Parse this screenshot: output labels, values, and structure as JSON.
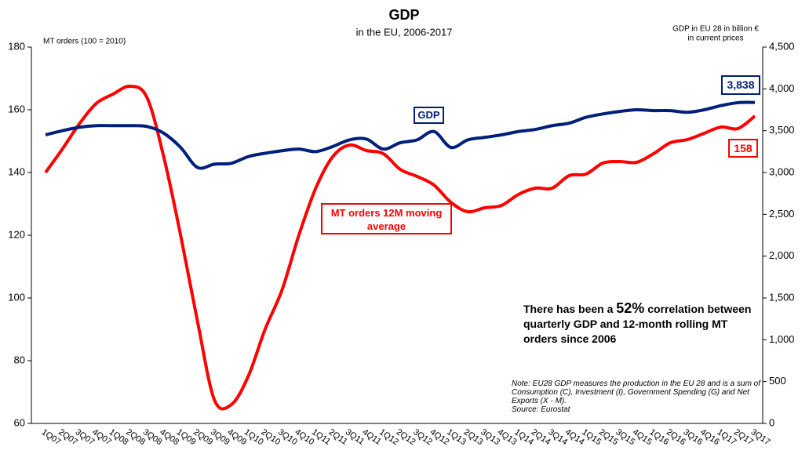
{
  "chart_data": {
    "type": "line",
    "title": "GDP",
    "subtitle": "in the EU, 2006-2017",
    "y_label": "MT orders (100 = 2010)",
    "y2_label": [
      "GDP in EU 28 in billion €",
      "in current prices"
    ],
    "categories": [
      "1Q07",
      "2Q07",
      "3Q07",
      "4Q07",
      "1Q08",
      "2Q08",
      "3Q08",
      "4Q08",
      "1Q09",
      "2Q09",
      "3Q09",
      "4Q09",
      "1Q10",
      "2Q10",
      "3Q10",
      "4Q10",
      "1Q11",
      "2Q11",
      "3Q11",
      "4Q11",
      "1Q12",
      "2Q12",
      "3Q12",
      "4Q12",
      "1Q13",
      "2Q13",
      "3Q13",
      "4Q13",
      "1Q14",
      "2Q14",
      "3Q14",
      "4Q14",
      "1Q15",
      "2Q15",
      "3Q15",
      "4Q15",
      "1Q16",
      "2Q16",
      "3Q16",
      "4Q16",
      "1Q17",
      "2Q17",
      "3Q17"
    ],
    "series": [
      {
        "name": "MT orders 12M moving average",
        "color": "#ff0000",
        "axis": "y",
        "values": [
          140,
          147.5,
          155.5,
          162,
          165,
          167.5,
          164,
          145,
          120,
          92.5,
          67.5,
          66,
          75,
          90,
          102.5,
          120,
          135,
          145,
          148.75,
          147,
          146,
          141,
          138.75,
          136,
          130.5,
          127.5,
          128.75,
          129.5,
          133,
          135,
          135,
          139,
          139.5,
          143,
          143.5,
          143.25,
          146,
          149.5,
          150.5,
          152.5,
          154.5,
          154,
          158
        ]
      },
      {
        "name": "GDP",
        "color": "#001f7a",
        "axis": "y2",
        "values": [
          3450,
          3500,
          3540,
          3560,
          3560,
          3560,
          3550,
          3470,
          3300,
          3060,
          3100,
          3110,
          3190,
          3230,
          3260,
          3280,
          3250,
          3310,
          3390,
          3400,
          3280,
          3356,
          3390,
          3490,
          3300,
          3390,
          3420,
          3450,
          3490,
          3515,
          3560,
          3590,
          3660,
          3700,
          3730,
          3750,
          3740,
          3740,
          3720,
          3750,
          3800,
          3835,
          3838
        ],
        "value_labels": [
          null,
          null,
          null,
          null,
          null,
          null,
          null,
          null,
          null,
          null,
          null,
          null,
          null,
          null,
          null,
          null,
          null,
          null,
          null,
          null,
          null,
          null,
          null,
          null,
          null,
          null,
          null,
          null,
          null,
          null,
          null,
          null,
          null,
          null,
          null,
          null,
          null,
          null,
          null,
          null,
          null,
          null,
          "3,838"
        ]
      }
    ],
    "ylim": [
      60,
      180
    ],
    "yticks": [
      60,
      80,
      100,
      120,
      140,
      160,
      180
    ],
    "y2lim": [
      0,
      4500
    ],
    "y2ticks": [
      0,
      500,
      {
        "value": 1000,
        "label": "1,000"
      },
      {
        "value": 1500,
        "label": "1,500"
      },
      {
        "value": 2000,
        "label": "2,000"
      },
      {
        "value": 2500,
        "label": "2,500"
      },
      {
        "value": 3000,
        "label": "3,000"
      },
      {
        "value": 3500,
        "label": "3,500"
      },
      {
        "value": 4000,
        "label": "4,000"
      },
      {
        "value": 4500,
        "label": "4,500"
      }
    ],
    "grid": true,
    "annotations": {
      "correlation": {
        "before": "There has been a ",
        "highlight": "52%",
        "after": " correlation between quarterly GDP and 12-month rolling MT orders since 2006"
      },
      "note": "Note: EU28 GDP measures the production in the EU 28 and is a sum of Consumption (C), Investment (I), Government Spending (G) and Net Exports (X - M).",
      "source": "Source: Eurostat"
    }
  }
}
